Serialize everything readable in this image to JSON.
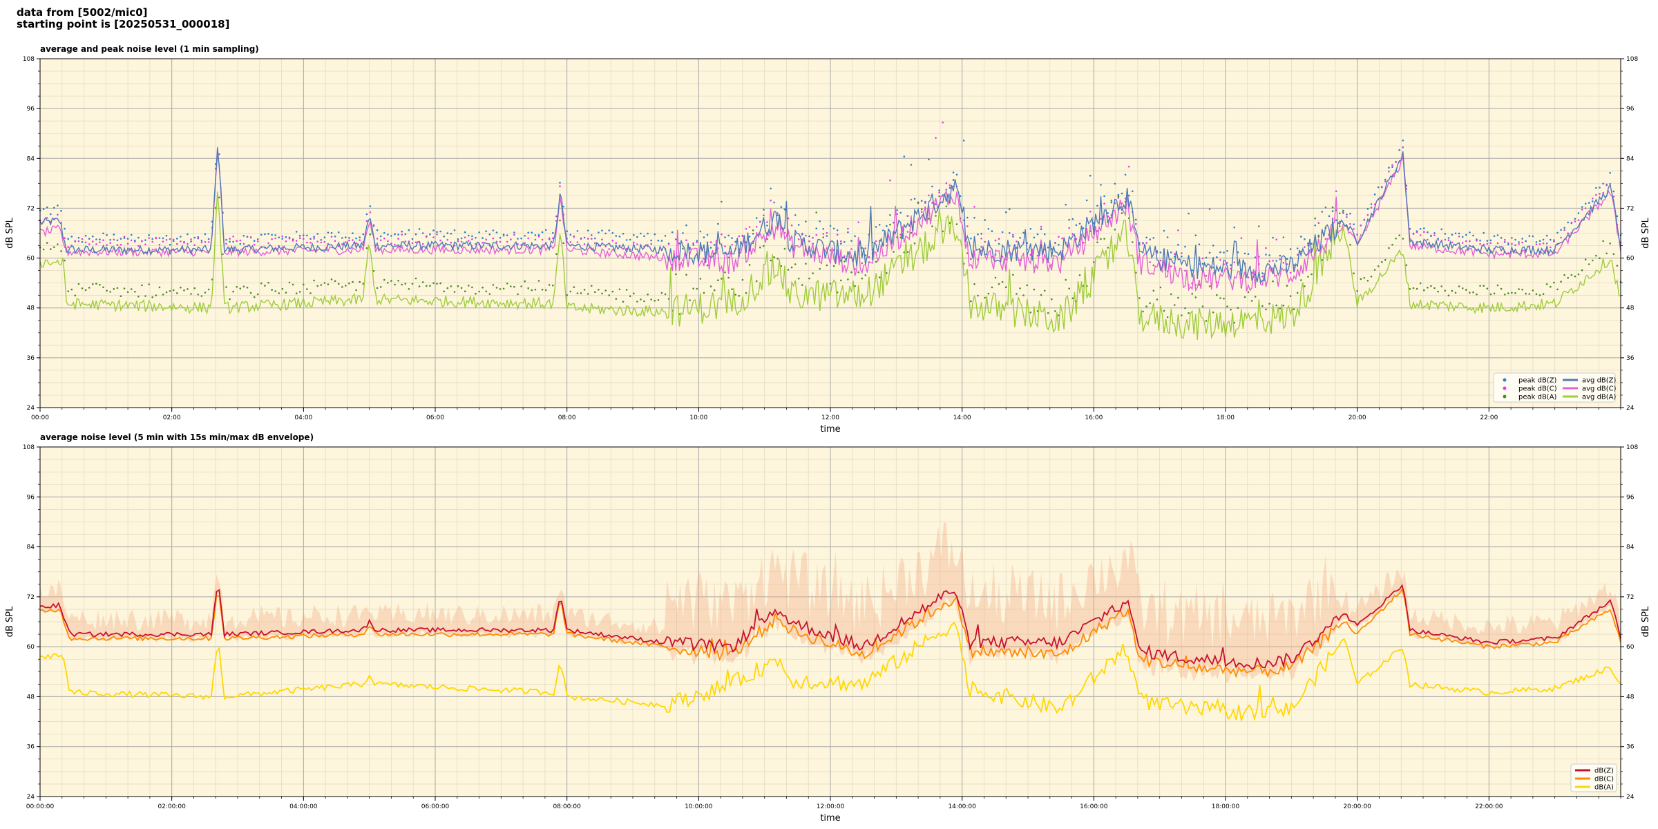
{
  "header": {
    "line1": "data from [5002/mic0]",
    "line2": "starting point is [20250531_000018]"
  },
  "colors": {
    "plot_background": "#fdf6dc",
    "grid_major": "#a9a9a9",
    "grid_minor": "#e4dcc2",
    "peak_z": "#2c7fc7",
    "peak_c": "#e23de0",
    "peak_a": "#4a8a28",
    "avg_z": "#4e79b5",
    "avg_c": "#e55fd8",
    "avg_a": "#9fcc3b",
    "line_z": "#c8102e",
    "line_c": "#ff8c00",
    "line_a": "#ffd700",
    "envelope": "#f4a582"
  },
  "chart_data": [
    {
      "type": "line+scatter",
      "title": "average and peak noise level (1 min sampling)",
      "xlabel": "time",
      "ylabel": "dB SPL",
      "ylabel_right": "dB SPL",
      "xlim": [
        0,
        24
      ],
      "ylim": [
        24,
        108
      ],
      "xticks": [
        "00:00",
        "02:00",
        "04:00",
        "06:00",
        "08:00",
        "10:00",
        "12:00",
        "14:00",
        "16:00",
        "18:00",
        "20:00",
        "22:00"
      ],
      "yticks": [
        "24",
        "36",
        "48",
        "60",
        "72",
        "84",
        "96",
        "108"
      ],
      "grid": "major and minor",
      "legend_position": "bottom-right",
      "legend": [
        {
          "label": "peak dB(Z)",
          "marker": "dot",
          "color_key": "peak_z"
        },
        {
          "label": "peak dB(C)",
          "marker": "dot",
          "color_key": "peak_c"
        },
        {
          "label": "peak dB(A)",
          "marker": "dot",
          "color_key": "peak_a"
        },
        {
          "label": "avg dB(Z)",
          "marker": "line",
          "color_key": "avg_z"
        },
        {
          "label": "avg dB(C)",
          "marker": "line",
          "color_key": "avg_c"
        },
        {
          "label": "avg dB(A)",
          "marker": "line",
          "color_key": "avg_a"
        }
      ],
      "series": [
        {
          "name": "avg dB(Z)",
          "style": "line",
          "color_key": "avg_z",
          "points": [
            [
              0,
              68.5
            ],
            [
              0.3,
              69
            ],
            [
              0.4,
              62
            ],
            [
              2.6,
              62
            ],
            [
              2.7,
              88
            ],
            [
              2.8,
              62
            ],
            [
              4.9,
              63
            ],
            [
              5.0,
              70
            ],
            [
              5.1,
              63
            ],
            [
              7.8,
              63
            ],
            [
              7.9,
              76
            ],
            [
              8.0,
              63
            ],
            [
              9.5,
              62
            ],
            [
              10.5,
              61
            ],
            [
              11.2,
              70
            ],
            [
              11.4,
              64
            ],
            [
              12.5,
              60
            ],
            [
              13.9,
              77
            ],
            [
              14.1,
              62
            ],
            [
              15.5,
              62
            ],
            [
              16.5,
              75
            ],
            [
              16.7,
              61
            ],
            [
              17.5,
              58
            ],
            [
              18.5,
              57
            ],
            [
              19.0,
              58
            ],
            [
              19.8,
              69
            ],
            [
              20.0,
              64
            ],
            [
              20.7,
              85
            ],
            [
              20.8,
              64
            ],
            [
              22.0,
              62
            ],
            [
              23.0,
              62
            ],
            [
              23.85,
              77
            ],
            [
              24,
              63
            ]
          ],
          "noise": 3
        },
        {
          "name": "avg dB(C)",
          "style": "line",
          "color_key": "avg_c",
          "points": [
            [
              0,
              66
            ],
            [
              0.3,
              67
            ],
            [
              0.4,
              61.5
            ],
            [
              2.6,
              61.5
            ],
            [
              2.7,
              87
            ],
            [
              2.8,
              61.5
            ],
            [
              4.9,
              62
            ],
            [
              5.0,
              69
            ],
            [
              5.1,
              62
            ],
            [
              7.8,
              62
            ],
            [
              7.9,
              75
            ],
            [
              8.0,
              62
            ],
            [
              9.5,
              60
            ],
            [
              10.5,
              59
            ],
            [
              11.2,
              68
            ],
            [
              11.4,
              63
            ],
            [
              12.5,
              58
            ],
            [
              13.9,
              76
            ],
            [
              14.1,
              60
            ],
            [
              15.5,
              59
            ],
            [
              16.5,
              73
            ],
            [
              16.7,
              59
            ],
            [
              17.5,
              55
            ],
            [
              18.5,
              55
            ],
            [
              19.0,
              56
            ],
            [
              19.8,
              68
            ],
            [
              20.0,
              63
            ],
            [
              20.7,
              84
            ],
            [
              20.8,
              63
            ],
            [
              22.0,
              61
            ],
            [
              23.0,
              61
            ],
            [
              23.85,
              76
            ],
            [
              24,
              62
            ]
          ],
          "noise": 3
        },
        {
          "name": "avg dB(A)",
          "style": "line",
          "color_key": "avg_a",
          "points": [
            [
              0,
              59
            ],
            [
              0.35,
              59
            ],
            [
              0.4,
              49
            ],
            [
              2.6,
              48
            ],
            [
              2.7,
              77
            ],
            [
              2.8,
              48
            ],
            [
              4.9,
              50
            ],
            [
              5.0,
              64
            ],
            [
              5.1,
              50
            ],
            [
              7.8,
              49
            ],
            [
              7.9,
              67
            ],
            [
              8.0,
              48
            ],
            [
              9.5,
              47
            ],
            [
              10.5,
              49
            ],
            [
              11.2,
              58
            ],
            [
              11.4,
              51
            ],
            [
              12.5,
              51
            ],
            [
              13.9,
              68
            ],
            [
              14.1,
              49
            ],
            [
              15.5,
              45
            ],
            [
              16.5,
              66
            ],
            [
              16.7,
              46
            ],
            [
              17.5,
              44
            ],
            [
              18.5,
              45
            ],
            [
              19.0,
              46
            ],
            [
              19.8,
              67
            ],
            [
              20.0,
              49
            ],
            [
              20.7,
              62
            ],
            [
              20.8,
              49
            ],
            [
              22.0,
              48
            ],
            [
              23.0,
              49
            ],
            [
              23.85,
              60
            ],
            [
              24,
              50
            ]
          ],
          "noise": 4
        },
        {
          "name": "peak dB(Z)",
          "style": "scatter",
          "color_key": "peak_z",
          "offset": 2.5,
          "base": "avg dB(Z)"
        },
        {
          "name": "peak dB(C)",
          "style": "scatter",
          "color_key": "peak_c",
          "offset": 2,
          "base": "avg dB(C)"
        },
        {
          "name": "peak dB(A)",
          "style": "scatter",
          "color_key": "peak_a",
          "offset": 3.5,
          "base": "avg dB(A)"
        }
      ]
    },
    {
      "type": "line+area",
      "title": "average noise level (5 min with 15s min/max dB envelope)",
      "xlabel": "time",
      "ylabel": "dB SPL",
      "ylabel_right": "dB SPL",
      "xlim": [
        0,
        24
      ],
      "ylim": [
        24,
        108
      ],
      "xticks": [
        "00:00:00",
        "02:00:00",
        "04:00:00",
        "06:00:00",
        "08:00:00",
        "10:00:00",
        "12:00:00",
        "14:00:00",
        "16:00:00",
        "18:00:00",
        "20:00:00",
        "22:00:00"
      ],
      "yticks": [
        "24",
        "36",
        "48",
        "60",
        "72",
        "84",
        "96",
        "108"
      ],
      "grid": "major and minor",
      "legend_position": "bottom-right",
      "legend": [
        {
          "label": "dB(Z)",
          "marker": "line",
          "color_key": "line_z"
        },
        {
          "label": "dB(C)",
          "marker": "line",
          "color_key": "line_c"
        },
        {
          "label": "dB(A)",
          "marker": "line",
          "color_key": "line_a"
        }
      ],
      "series": [
        {
          "name": "dB(Z)",
          "style": "line",
          "color_key": "line_z",
          "points": [
            [
              0,
              69.5
            ],
            [
              0.3,
              70
            ],
            [
              0.45,
              63
            ],
            [
              2.6,
              63
            ],
            [
              2.7,
              76
            ],
            [
              2.8,
              63
            ],
            [
              4.9,
              64
            ],
            [
              5.0,
              66
            ],
            [
              5.1,
              64
            ],
            [
              7.8,
              64
            ],
            [
              7.9,
              73
            ],
            [
              8.0,
              64
            ],
            [
              9.5,
              61
            ],
            [
              10.5,
              60
            ],
            [
              11.2,
              69
            ],
            [
              11.4,
              66
            ],
            [
              12.5,
              60
            ],
            [
              13.9,
              74
            ],
            [
              14.1,
              61
            ],
            [
              15.5,
              61
            ],
            [
              16.5,
              71
            ],
            [
              16.7,
              59
            ],
            [
              17.5,
              57
            ],
            [
              18.5,
              56
            ],
            [
              19.0,
              57
            ],
            [
              19.8,
              68
            ],
            [
              20.0,
              65
            ],
            [
              20.7,
              75
            ],
            [
              20.8,
              64
            ],
            [
              22.0,
              61
            ],
            [
              23.0,
              62
            ],
            [
              23.85,
              71
            ],
            [
              24,
              62
            ]
          ],
          "noise": 1.5
        },
        {
          "name": "dB(C)",
          "style": "line",
          "color_key": "line_c",
          "points": [
            [
              0,
              68.5
            ],
            [
              0.3,
              69
            ],
            [
              0.45,
              62
            ],
            [
              2.6,
              62
            ],
            [
              2.7,
              75
            ],
            [
              2.8,
              62
            ],
            [
              4.9,
              63
            ],
            [
              5.0,
              65
            ],
            [
              5.1,
              63
            ],
            [
              7.8,
              63
            ],
            [
              7.9,
              72
            ],
            [
              8.0,
              63
            ],
            [
              9.5,
              60
            ],
            [
              10.5,
              58
            ],
            [
              11.2,
              67
            ],
            [
              11.4,
              64
            ],
            [
              12.5,
              58
            ],
            [
              13.9,
              72
            ],
            [
              14.1,
              59
            ],
            [
              15.5,
              58
            ],
            [
              16.5,
              69
            ],
            [
              16.7,
              57
            ],
            [
              17.5,
              55
            ],
            [
              18.5,
              54
            ],
            [
              19.0,
              55
            ],
            [
              19.8,
              66
            ],
            [
              20.0,
              63
            ],
            [
              20.7,
              74
            ],
            [
              20.8,
              63
            ],
            [
              22.0,
              60
            ],
            [
              23.0,
              61
            ],
            [
              23.85,
              69
            ],
            [
              24,
              61
            ]
          ],
          "noise": 1.5
        },
        {
          "name": "dB(A)",
          "style": "line",
          "color_key": "line_a",
          "points": [
            [
              0,
              57.5
            ],
            [
              0.35,
              58
            ],
            [
              0.45,
              49
            ],
            [
              2.6,
              48
            ],
            [
              2.7,
              62
            ],
            [
              2.8,
              48
            ],
            [
              4.9,
              51
            ],
            [
              5.0,
              53
            ],
            [
              5.1,
              51
            ],
            [
              7.8,
              49
            ],
            [
              7.9,
              57
            ],
            [
              8.0,
              48
            ],
            [
              9.5,
              46
            ],
            [
              10.5,
              51
            ],
            [
              11.2,
              57
            ],
            [
              11.4,
              52
            ],
            [
              12.5,
              51
            ],
            [
              13.9,
              66
            ],
            [
              14.1,
              50
            ],
            [
              15.5,
              45
            ],
            [
              16.5,
              60
            ],
            [
              16.7,
              47
            ],
            [
              17.5,
              45
            ],
            [
              18.5,
              44
            ],
            [
              19.0,
              45
            ],
            [
              19.8,
              62
            ],
            [
              20.0,
              51
            ],
            [
              20.7,
              60
            ],
            [
              20.8,
              51
            ],
            [
              22.0,
              49
            ],
            [
              23.0,
              50
            ],
            [
              23.85,
              55
            ],
            [
              24,
              51
            ]
          ],
          "noise": 2
        },
        {
          "name": "dB(Z) min/max envelope",
          "style": "area",
          "color_key": "envelope",
          "base": "dB(Z)",
          "spread": 6
        }
      ]
    }
  ]
}
